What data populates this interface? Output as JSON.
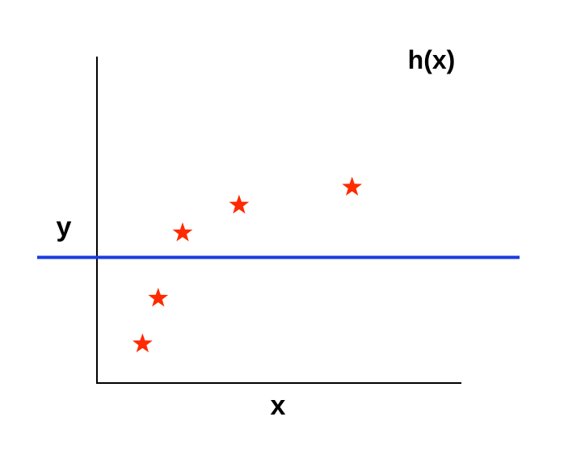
{
  "chart_data": {
    "type": "scatter",
    "title": "h(x)",
    "xlabel": "x",
    "ylabel": "y",
    "xlim": [
      0,
      10
    ],
    "ylim": [
      0,
      10
    ],
    "grid": false,
    "series": [
      {
        "marker": "star",
        "color": "#ff2a00",
        "points": [
          {
            "x": 1.25,
            "y": 1.2
          },
          {
            "x": 1.68,
            "y": 2.6
          },
          {
            "x": 2.35,
            "y": 4.6
          },
          {
            "x": 3.9,
            "y": 5.45
          },
          {
            "x": 7.0,
            "y": 6.0
          }
        ]
      }
    ],
    "reference_line": {
      "type": "horizontal",
      "y": 3.85,
      "color": "#1a3be0"
    }
  }
}
